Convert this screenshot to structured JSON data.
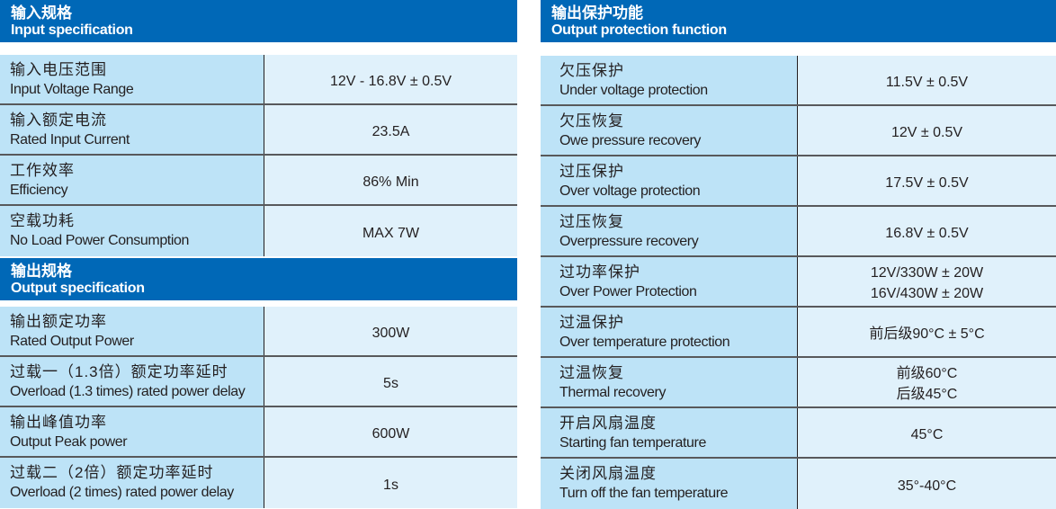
{
  "input": {
    "title_zh": "输入规格",
    "title_en": "Input specification",
    "rows": [
      {
        "zh": "输入电压范围",
        "en": "Input Voltage Range",
        "values": [
          "12V - 16.8V ± 0.5V"
        ]
      },
      {
        "zh": "输入额定电流",
        "en": "Rated Input Current",
        "values": [
          "23.5A"
        ]
      },
      {
        "zh": "工作效率",
        "en": "Efficiency",
        "values": [
          "86% Min"
        ]
      },
      {
        "zh": "空载功耗",
        "en": "No Load Power Consumption",
        "values": [
          "MAX 7W"
        ]
      }
    ]
  },
  "output": {
    "title_zh": "输出规格",
    "title_en": "Output specification",
    "rows": [
      {
        "zh": "输出额定功率",
        "en": "Rated Output Power",
        "values": [
          "300W"
        ]
      },
      {
        "zh": "过载一（1.3倍）额定功率延时",
        "en": "Overload (1.3 times) rated power delay",
        "values": [
          "5s"
        ]
      },
      {
        "zh": "输出峰值功率",
        "en": "Output Peak power",
        "values": [
          "600W"
        ]
      },
      {
        "zh": "过载二（2倍）额定功率延时",
        "en": "Overload (2 times) rated power delay",
        "values": [
          "1s"
        ]
      }
    ]
  },
  "protection": {
    "title_zh": "输出保护功能",
    "title_en": "Output protection function",
    "rows": [
      {
        "zh": "欠压保护",
        "en": "Under voltage protection",
        "values": [
          "11.5V ± 0.5V"
        ]
      },
      {
        "zh": "欠压恢复",
        "en": "Owe pressure recovery",
        "values": [
          "12V ± 0.5V"
        ]
      },
      {
        "zh": "过压保护",
        "en": "Over voltage protection",
        "values": [
          "17.5V ± 0.5V"
        ]
      },
      {
        "zh": "过压恢复",
        "en": "Overpressure recovery",
        "values": [
          "16.8V ± 0.5V"
        ]
      },
      {
        "zh": "过功率保护",
        "en": "Over Power Protection",
        "values": [
          "12V/330W ± 20W",
          "16V/430W ± 20W"
        ]
      },
      {
        "zh": "过温保护",
        "en": "Over temperature protection",
        "values": [
          "前后级90°C ± 5°C"
        ]
      },
      {
        "zh": "过温恢复",
        "en": "Thermal recovery",
        "values": [
          "前级60°C",
          "后级45°C"
        ]
      },
      {
        "zh": "开启风扇温度",
        "en": "Starting fan temperature",
        "values": [
          "45°C"
        ]
      },
      {
        "zh": "关闭风扇温度",
        "en": "Turn off the fan temperature",
        "values": [
          "35°-40°C"
        ]
      }
    ]
  }
}
